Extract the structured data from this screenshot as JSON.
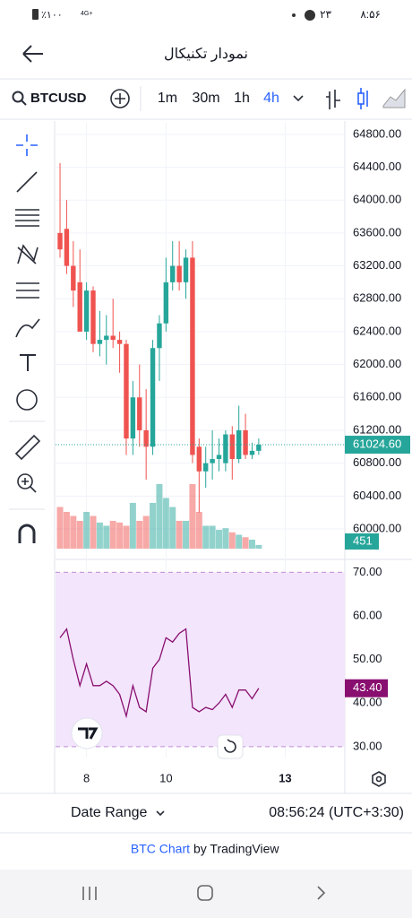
{
  "status_bar": {
    "battery": "٪۱۰۰",
    "network": "4G+",
    "time": "۸:۵۶",
    "notification": "۲۳"
  },
  "header": {
    "title": "نمودار تکنیکال"
  },
  "toolbar": {
    "symbol": "BTCUSD",
    "intervals": [
      "1m",
      "30m",
      "1h",
      "4h"
    ],
    "active_interval": 3
  },
  "chart_data": [
    {
      "type": "candlestick",
      "up_color": "#26a69a",
      "down_color": "#ef5350",
      "grid": true,
      "categories": [
        null,
        null,
        null,
        null,
        null,
        null,
        null,
        null,
        null,
        null,
        null,
        null,
        null,
        null,
        null,
        null,
        null,
        null,
        null,
        null,
        null,
        null,
        null,
        null,
        null,
        null,
        null,
        null,
        null,
        null,
        null
      ],
      "open": [
        63600,
        63650,
        63200,
        63000,
        62400,
        62900,
        62250,
        62300,
        62350,
        62300,
        62250,
        61100,
        61600,
        61200,
        61000,
        62200,
        62500,
        63000,
        63200,
        63000,
        63300,
        61000,
        60700,
        60800,
        60850,
        60800,
        61150,
        60850,
        61200,
        60900,
        60950
      ],
      "high": [
        64450,
        64000,
        63500,
        63400,
        63000,
        62950,
        62650,
        62600,
        62800,
        62400,
        62300,
        61800,
        62000,
        61700,
        62300,
        62600,
        63300,
        63500,
        63500,
        63400,
        63500,
        61100,
        61000,
        61200,
        61100,
        61200,
        61250,
        61500,
        61400,
        61050,
        61100
      ],
      "low": [
        63300,
        63100,
        62700,
        62400,
        62300,
        62150,
        62100,
        62000,
        62200,
        61900,
        60900,
        60900,
        61000,
        60600,
        60900,
        61800,
        62400,
        62900,
        62900,
        62800,
        60800,
        60200,
        60500,
        60600,
        60700,
        60700,
        60600,
        60800,
        60850,
        60850,
        60900
      ],
      "close": [
        63400,
        63200,
        62900,
        62400,
        62900,
        62250,
        62300,
        62350,
        62300,
        62250,
        61100,
        61600,
        61200,
        61000,
        62200,
        62500,
        63000,
        63200,
        63000,
        63300,
        60900,
        60700,
        60800,
        60850,
        60900,
        61150,
        60850,
        61200,
        60900,
        60950,
        61024.6
      ],
      "last_close_label": "61024.60",
      "volume": [
        5100,
        4500,
        4000,
        3400,
        4500,
        4000,
        3200,
        2800,
        3400,
        3200,
        2800,
        5600,
        3400,
        4000,
        5600,
        7900,
        6200,
        5100,
        3400,
        3400,
        7900,
        4500,
        2800,
        2800,
        2300,
        2500,
        2000,
        1700,
        1400,
        1100,
        451
      ],
      "last_volume_label": "451",
      "xlim": [
        -0.68,
        43
      ],
      "xticks": [
        {
          "value": 4,
          "label": "8"
        },
        {
          "value": 16,
          "label": "10"
        },
        {
          "value": 34,
          "label": "13"
        }
      ],
      "ylim": [
        59760,
        64940
      ],
      "yticks": [
        {
          "value": 60000,
          "label": "60000.00"
        },
        {
          "value": 60400,
          "label": "60400.00"
        },
        {
          "value": 60800,
          "label": "60800.00"
        },
        {
          "value": 61200,
          "label": "61200.00"
        },
        {
          "value": 61600,
          "label": "61600.00"
        },
        {
          "value": 62000,
          "label": "62000.00"
        },
        {
          "value": 62400,
          "label": "62400.00"
        },
        {
          "value": 62800,
          "label": "62800.00"
        },
        {
          "value": 63200,
          "label": "63200.00"
        },
        {
          "value": 63600,
          "label": "63600.00"
        },
        {
          "value": 64000,
          "label": "64000.00"
        },
        {
          "value": 64400,
          "label": "64400.00"
        },
        {
          "value": 64800,
          "label": "64800.00"
        }
      ]
    },
    {
      "type": "line",
      "color": "#880e6f",
      "band_color": "#f3e5fc",
      "values": [
        55,
        57,
        50,
        44,
        49,
        44,
        44,
        45,
        44,
        42,
        37,
        44,
        39,
        38,
        48,
        50,
        55,
        54,
        56,
        57,
        39,
        38,
        39,
        38.5,
        40,
        42,
        39,
        43,
        43,
        41,
        43.4
      ],
      "last_value_label": "43.40",
      "xlim": [
        -0.68,
        43
      ],
      "ylim": [
        27.5,
        70.5
      ],
      "yticks": [
        {
          "value": 30,
          "label": "30.00"
        },
        {
          "value": 40,
          "label": "40.00"
        },
        {
          "value": 50,
          "label": "50.00"
        },
        {
          "value": 60,
          "label": "60.00"
        },
        {
          "value": 70,
          "label": "70.00"
        }
      ]
    }
  ],
  "footer": {
    "date_range": "Date Range",
    "clock": "08:56:24 (UTC+3:30)",
    "link": "BTC Chart",
    "by": "by TradingView"
  }
}
